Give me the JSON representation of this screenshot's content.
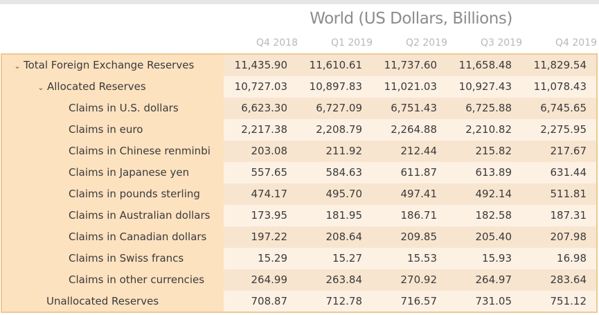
{
  "title": "World (US Dollars, Billions)",
  "columns": [
    "Q4 2018",
    "Q1 2019",
    "Q2 2019",
    "Q3 2019",
    "Q4 2019"
  ],
  "rows": [
    {
      "label": "Total Foreign Exchange Reserves",
      "expanded": true,
      "values": [
        "11,435.90",
        "11,610.61",
        "11,737.60",
        "11,658.48",
        "11,829.54"
      ]
    },
    {
      "label": "Allocated Reserves",
      "expanded": true,
      "values": [
        "10,727.03",
        "10,897.83",
        "11,021.03",
        "10,927.43",
        "11,078.43"
      ]
    },
    {
      "label": "Claims in U.S. dollars",
      "values": [
        "6,623.30",
        "6,727.09",
        "6,751.43",
        "6,725.88",
        "6,745.65"
      ]
    },
    {
      "label": "Claims in euro",
      "values": [
        "2,217.38",
        "2,208.79",
        "2,264.88",
        "2,210.82",
        "2,275.95"
      ]
    },
    {
      "label": "Claims in Chinese renminbi",
      "values": [
        "203.08",
        "211.92",
        "212.44",
        "215.82",
        "217.67"
      ]
    },
    {
      "label": "Claims in Japanese yen",
      "values": [
        "557.65",
        "584.63",
        "611.87",
        "613.89",
        "631.44"
      ]
    },
    {
      "label": "Claims in pounds sterling",
      "values": [
        "474.17",
        "495.70",
        "497.41",
        "492.14",
        "511.81"
      ]
    },
    {
      "label": "Claims in Australian dollars",
      "values": [
        "173.95",
        "181.95",
        "186.71",
        "182.58",
        "187.31"
      ]
    },
    {
      "label": "Claims in Canadian dollars",
      "values": [
        "197.22",
        "208.64",
        "209.85",
        "205.40",
        "207.98"
      ]
    },
    {
      "label": "Claims in Swiss francs",
      "values": [
        "15.29",
        "15.27",
        "15.53",
        "15.93",
        "16.98"
      ]
    },
    {
      "label": "Claims in other currencies",
      "values": [
        "264.99",
        "263.84",
        "270.92",
        "264.97",
        "283.64"
      ]
    },
    {
      "label": "Unallocated Reserves",
      "values": [
        "708.87",
        "712.78",
        "716.57",
        "731.05",
        "751.12"
      ]
    }
  ],
  "icons": {
    "expand": "chevron-down-icon"
  },
  "colors": {
    "row_header_bg": "#fde2c0",
    "row_odd_bg": "#f8e5d0",
    "row_even_bg": "#fdf1e4",
    "border": "#f0c890",
    "title": "#8c8c8c",
    "column_header": "#b8b8b8"
  }
}
